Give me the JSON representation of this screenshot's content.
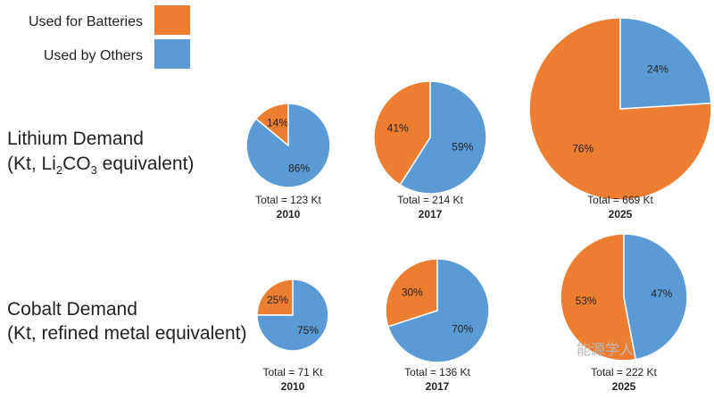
{
  "legend": {
    "batteries": {
      "label": "Used for Batteries",
      "color": "#ED7D31"
    },
    "others": {
      "label": "Used by Others",
      "color": "#5B9BD5"
    }
  },
  "rows": {
    "lithium": {
      "title": "Lithium Demand",
      "subtitle_pre": "(Kt, Li",
      "sub1": "2",
      "subtitle_mid": "CO",
      "sub2": "3",
      "subtitle_post": " equivalent)"
    },
    "cobalt": {
      "title": "Cobalt Demand",
      "subtitle": "(Kt, refined metal equivalent)"
    }
  },
  "watermark": "能源学人",
  "chart_data": [
    {
      "type": "pie",
      "row": "Lithium Demand",
      "year": "2010",
      "total_label": "Total = 123 Kt",
      "total": 123,
      "slices": [
        {
          "name": "Used for Batteries",
          "value": 14,
          "label": "14%"
        },
        {
          "name": "Used by Others",
          "value": 86,
          "label": "86%"
        }
      ]
    },
    {
      "type": "pie",
      "row": "Lithium Demand",
      "year": "2017",
      "total_label": "Total = 214 Kt",
      "total": 214,
      "slices": [
        {
          "name": "Used for Batteries",
          "value": 41,
          "label": "41%"
        },
        {
          "name": "Used by Others",
          "value": 59,
          "label": "59%"
        }
      ]
    },
    {
      "type": "pie",
      "row": "Lithium Demand",
      "year": "2025",
      "total_label": "Total = 669 Kt",
      "total": 669,
      "slices": [
        {
          "name": "Used for Batteries",
          "value": 76,
          "label": "76%"
        },
        {
          "name": "Used by Others",
          "value": 24,
          "label": "24%"
        }
      ]
    },
    {
      "type": "pie",
      "row": "Cobalt Demand",
      "year": "2010",
      "total_label": "Total = 71 Kt",
      "total": 71,
      "slices": [
        {
          "name": "Used for Batteries",
          "value": 25,
          "label": "25%"
        },
        {
          "name": "Used by Others",
          "value": 75,
          "label": "75%"
        }
      ]
    },
    {
      "type": "pie",
      "row": "Cobalt Demand",
      "year": "2017",
      "total_label": "Total = 136 Kt",
      "total": 136,
      "slices": [
        {
          "name": "Used for Batteries",
          "value": 30,
          "label": "30%"
        },
        {
          "name": "Used by Others",
          "value": 70,
          "label": "70%"
        }
      ]
    },
    {
      "type": "pie",
      "row": "Cobalt Demand",
      "year": "2025",
      "total_label": "Total = 222 Kt",
      "total": 222,
      "slices": [
        {
          "name": "Used for Batteries",
          "value": 53,
          "label": "53%"
        },
        {
          "name": "Used by Others",
          "value": 47,
          "label": "47%"
        }
      ]
    }
  ]
}
